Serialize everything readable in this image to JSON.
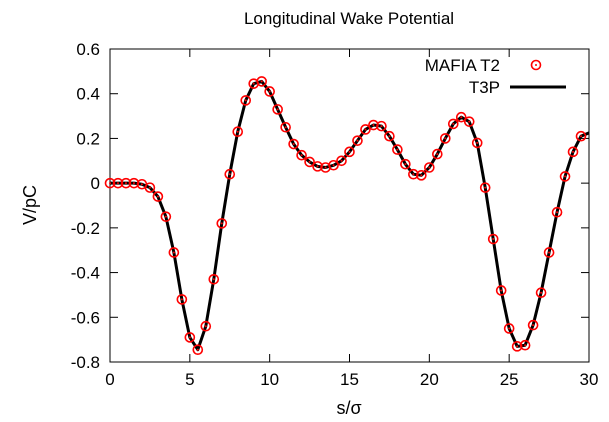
{
  "chart_data": {
    "type": "line",
    "title": "Longitudinal Wake Potential",
    "xlabel": "s/σ",
    "ylabel": "V/pC",
    "xlim": [
      0,
      30
    ],
    "ylim": [
      -0.8,
      0.6
    ],
    "xticks": [
      "0",
      "5",
      "10",
      "15",
      "20",
      "25",
      "30"
    ],
    "yticks": [
      "0.6",
      "0.4",
      "0.2",
      "0",
      "-0.2",
      "-0.4",
      "-0.6",
      "-0.8"
    ],
    "grid": false,
    "legend_position": "top-right",
    "series": [
      {
        "name": "MAFIA T2",
        "style": "markers",
        "marker": "circle-dot",
        "color": "#ff0000",
        "x": [
          0.0,
          0.5,
          1.0,
          1.5,
          2.0,
          2.5,
          3.0,
          3.5,
          4.0,
          4.5,
          5.0,
          5.5,
          6.0,
          6.5,
          7.0,
          7.5,
          8.0,
          8.5,
          9.0,
          9.5,
          10.0,
          10.5,
          11.0,
          11.5,
          12.0,
          12.5,
          13.0,
          13.5,
          14.0,
          14.5,
          15.0,
          15.5,
          16.0,
          16.5,
          17.0,
          17.5,
          18.0,
          18.5,
          19.0,
          19.5,
          20.0,
          20.5,
          21.0,
          21.5,
          22.0,
          22.5,
          23.0,
          23.5,
          24.0,
          24.5,
          25.0,
          25.5,
          26.0,
          26.5,
          27.0,
          27.5,
          28.0,
          28.5,
          29.0,
          29.5
        ],
        "y": [
          0.0,
          0.0,
          0.0,
          0.0,
          -0.005,
          -0.02,
          -0.06,
          -0.15,
          -0.31,
          -0.52,
          -0.69,
          -0.745,
          -0.64,
          -0.43,
          -0.18,
          0.04,
          0.23,
          0.37,
          0.445,
          0.455,
          0.41,
          0.33,
          0.25,
          0.175,
          0.125,
          0.095,
          0.075,
          0.07,
          0.08,
          0.1,
          0.14,
          0.19,
          0.24,
          0.26,
          0.255,
          0.21,
          0.15,
          0.085,
          0.04,
          0.035,
          0.07,
          0.13,
          0.2,
          0.265,
          0.295,
          0.275,
          0.18,
          -0.02,
          -0.25,
          -0.48,
          -0.65,
          -0.73,
          -0.725,
          -0.635,
          -0.49,
          -0.31,
          -0.13,
          0.03,
          0.14,
          0.21
        ]
      },
      {
        "name": "T3P",
        "style": "line",
        "color": "#000000",
        "x": [
          0.0,
          0.5,
          1.0,
          1.5,
          2.0,
          2.5,
          3.0,
          3.5,
          4.0,
          4.5,
          5.0,
          5.5,
          6.0,
          6.5,
          7.0,
          7.5,
          8.0,
          8.5,
          9.0,
          9.5,
          10.0,
          10.5,
          11.0,
          11.5,
          12.0,
          12.5,
          13.0,
          13.5,
          14.0,
          14.5,
          15.0,
          15.5,
          16.0,
          16.5,
          17.0,
          17.5,
          18.0,
          18.5,
          19.0,
          19.5,
          20.0,
          20.5,
          21.0,
          21.5,
          22.0,
          22.5,
          23.0,
          23.5,
          24.0,
          24.5,
          25.0,
          25.5,
          26.0,
          26.5,
          27.0,
          27.5,
          28.0,
          28.5,
          29.0,
          29.5,
          30.0
        ],
        "y": [
          0.0,
          0.0,
          0.0,
          0.0,
          -0.005,
          -0.02,
          -0.06,
          -0.15,
          -0.31,
          -0.52,
          -0.69,
          -0.745,
          -0.64,
          -0.43,
          -0.18,
          0.04,
          0.23,
          0.37,
          0.445,
          0.455,
          0.41,
          0.33,
          0.25,
          0.175,
          0.125,
          0.095,
          0.075,
          0.07,
          0.08,
          0.1,
          0.14,
          0.19,
          0.24,
          0.26,
          0.255,
          0.21,
          0.15,
          0.085,
          0.04,
          0.035,
          0.07,
          0.13,
          0.2,
          0.265,
          0.295,
          0.275,
          0.18,
          -0.02,
          -0.25,
          -0.48,
          -0.65,
          -0.73,
          -0.725,
          -0.635,
          -0.49,
          -0.31,
          -0.13,
          0.03,
          0.14,
          0.21,
          0.225
        ]
      }
    ]
  }
}
